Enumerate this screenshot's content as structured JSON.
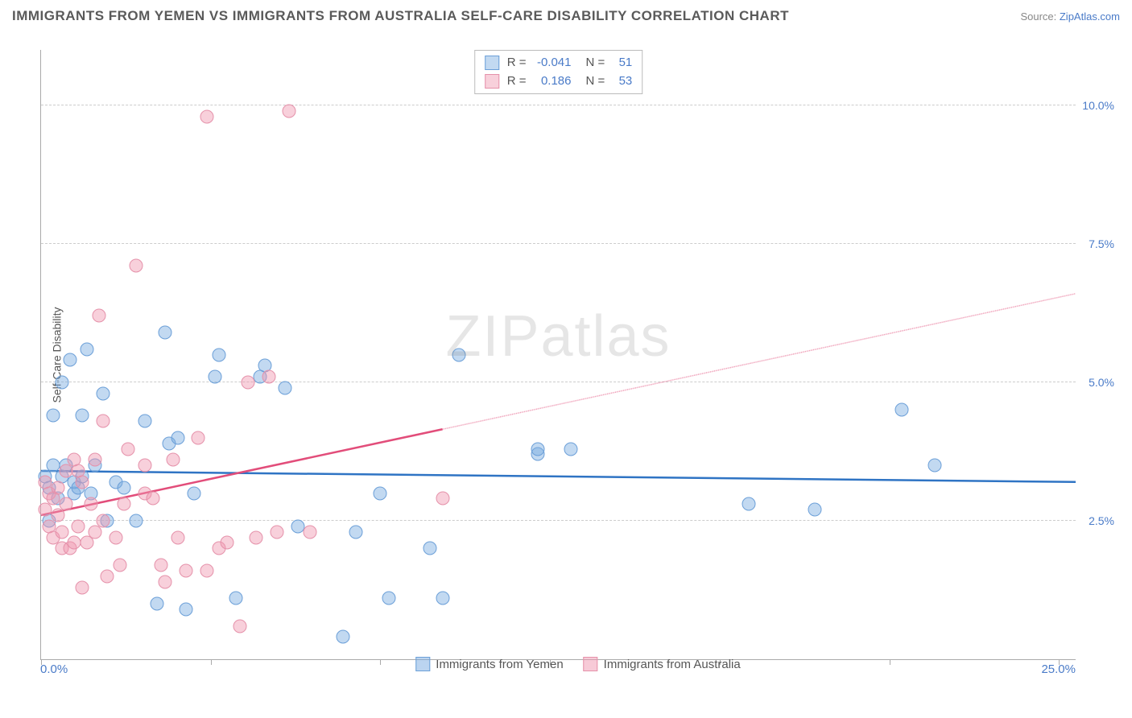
{
  "title": "IMMIGRANTS FROM YEMEN VS IMMIGRANTS FROM AUSTRALIA SELF-CARE DISABILITY CORRELATION CHART",
  "source_prefix": "Source: ",
  "source_link": "ZipAtlas.com",
  "watermark": "ZIPatlas",
  "y_axis_label": "Self-Care Disability",
  "x_min_label": "0.0%",
  "x_max_label": "25.0%",
  "chart": {
    "xlim": [
      0,
      25
    ],
    "ylim": [
      0,
      11
    ],
    "y_ticks": [
      2.5,
      5.0,
      7.5,
      10.0
    ],
    "y_tick_labels": [
      "2.5%",
      "5.0%",
      "7.5%",
      "10.0%"
    ],
    "x_ticks": [
      0,
      4.1,
      8.2,
      12.3,
      16.4,
      20.5,
      24.6
    ],
    "grid_color": "#cccccc",
    "background": "#ffffff",
    "series": [
      {
        "name": "Immigrants from Yemen",
        "fill": "rgba(120,170,225,0.45)",
        "stroke": "#6b9fd8",
        "line_color": "#2f74c4",
        "R": "-0.041",
        "N": "51",
        "trend": {
          "x1": 0,
          "y1": 3.4,
          "x2": 25,
          "y2": 3.2,
          "solid_until_x": 25
        },
        "points": [
          [
            0.1,
            3.3
          ],
          [
            0.2,
            3.1
          ],
          [
            0.2,
            2.5
          ],
          [
            0.3,
            3.5
          ],
          [
            0.3,
            4.4
          ],
          [
            0.4,
            2.9
          ],
          [
            0.5,
            5.0
          ],
          [
            0.5,
            3.3
          ],
          [
            0.6,
            3.5
          ],
          [
            0.7,
            5.4
          ],
          [
            0.8,
            3.0
          ],
          [
            0.8,
            3.2
          ],
          [
            0.9,
            3.1
          ],
          [
            1.0,
            3.3
          ],
          [
            1.0,
            4.4
          ],
          [
            1.1,
            5.6
          ],
          [
            1.2,
            3.0
          ],
          [
            1.3,
            3.5
          ],
          [
            1.5,
            4.8
          ],
          [
            1.6,
            2.5
          ],
          [
            1.8,
            3.2
          ],
          [
            2.0,
            3.1
          ],
          [
            2.3,
            2.5
          ],
          [
            2.5,
            4.3
          ],
          [
            2.8,
            1.0
          ],
          [
            3.0,
            5.9
          ],
          [
            3.1,
            3.9
          ],
          [
            3.3,
            4.0
          ],
          [
            3.5,
            0.9
          ],
          [
            3.7,
            3.0
          ],
          [
            4.2,
            5.1
          ],
          [
            4.3,
            5.5
          ],
          [
            4.7,
            1.1
          ],
          [
            5.3,
            5.1
          ],
          [
            5.4,
            5.3
          ],
          [
            5.9,
            4.9
          ],
          [
            6.2,
            2.4
          ],
          [
            7.3,
            0.4
          ],
          [
            7.6,
            2.3
          ],
          [
            8.2,
            3.0
          ],
          [
            8.4,
            1.1
          ],
          [
            9.4,
            2.0
          ],
          [
            9.7,
            1.1
          ],
          [
            10.1,
            5.5
          ],
          [
            12.0,
            3.7
          ],
          [
            12.0,
            3.8
          ],
          [
            12.8,
            3.8
          ],
          [
            17.1,
            2.8
          ],
          [
            18.7,
            2.7
          ],
          [
            20.8,
            4.5
          ],
          [
            21.6,
            3.5
          ]
        ]
      },
      {
        "name": "Immigrants from Australia",
        "fill": "rgba(240,150,175,0.45)",
        "stroke": "#e591aa",
        "line_color": "#e24d7a",
        "R": "0.186",
        "N": "53",
        "trend": {
          "x1": 0,
          "y1": 2.6,
          "x2": 25,
          "y2": 6.6,
          "solid_until_x": 9.7
        },
        "points": [
          [
            0.1,
            2.7
          ],
          [
            0.1,
            3.2
          ],
          [
            0.2,
            2.4
          ],
          [
            0.2,
            3.0
          ],
          [
            0.3,
            2.9
          ],
          [
            0.3,
            2.2
          ],
          [
            0.4,
            2.6
          ],
          [
            0.4,
            3.1
          ],
          [
            0.5,
            2.3
          ],
          [
            0.5,
            2.0
          ],
          [
            0.6,
            3.4
          ],
          [
            0.6,
            2.8
          ],
          [
            0.7,
            2.0
          ],
          [
            0.8,
            2.1
          ],
          [
            0.8,
            3.6
          ],
          [
            0.9,
            3.4
          ],
          [
            0.9,
            2.4
          ],
          [
            1.0,
            3.2
          ],
          [
            1.0,
            1.3
          ],
          [
            1.1,
            2.1
          ],
          [
            1.2,
            2.8
          ],
          [
            1.3,
            3.6
          ],
          [
            1.3,
            2.3
          ],
          [
            1.4,
            6.2
          ],
          [
            1.5,
            4.3
          ],
          [
            1.5,
            2.5
          ],
          [
            1.6,
            1.5
          ],
          [
            1.8,
            2.2
          ],
          [
            1.9,
            1.7
          ],
          [
            2.0,
            2.8
          ],
          [
            2.1,
            3.8
          ],
          [
            2.3,
            7.1
          ],
          [
            2.5,
            3.0
          ],
          [
            2.5,
            3.5
          ],
          [
            2.7,
            2.9
          ],
          [
            2.9,
            1.7
          ],
          [
            3.0,
            1.4
          ],
          [
            3.2,
            3.6
          ],
          [
            3.3,
            2.2
          ],
          [
            3.5,
            1.6
          ],
          [
            3.8,
            4.0
          ],
          [
            4.0,
            1.6
          ],
          [
            4.0,
            9.8
          ],
          [
            4.3,
            2.0
          ],
          [
            4.5,
            2.1
          ],
          [
            4.8,
            0.6
          ],
          [
            5.0,
            5.0
          ],
          [
            5.2,
            2.2
          ],
          [
            5.5,
            5.1
          ],
          [
            5.7,
            2.3
          ],
          [
            6.0,
            9.9
          ],
          [
            6.5,
            2.3
          ],
          [
            9.7,
            2.9
          ]
        ]
      }
    ]
  },
  "legend_bottom": [
    {
      "label": "Immigrants from Yemen",
      "fill": "rgba(120,170,225,0.5)",
      "stroke": "#6b9fd8"
    },
    {
      "label": "Immigrants from Australia",
      "fill": "rgba(240,150,175,0.5)",
      "stroke": "#e591aa"
    }
  ]
}
